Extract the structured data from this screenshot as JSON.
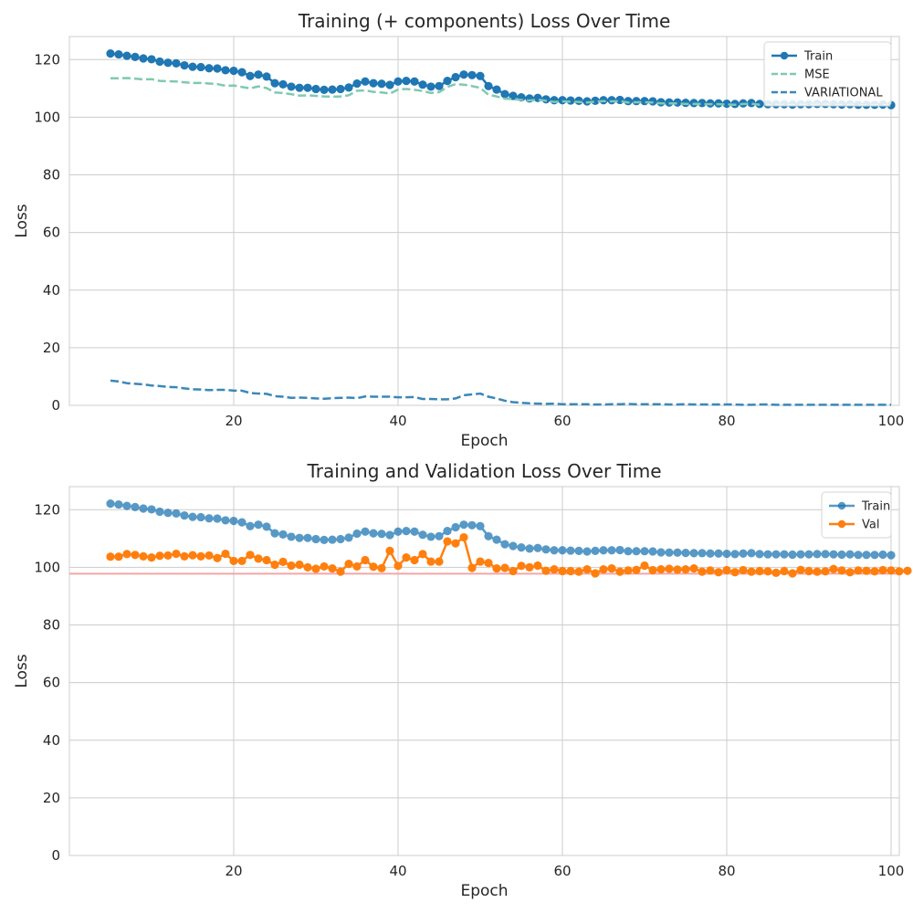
{
  "chart_data": [
    {
      "type": "line",
      "title": "Training (+ components) Loss Over Time",
      "xlabel": "Epoch",
      "ylabel": "Loss",
      "xlim": [
        0,
        101
      ],
      "ylim": [
        0,
        128
      ],
      "xticks": [
        20,
        40,
        60,
        80,
        100
      ],
      "yticks": [
        0,
        20,
        40,
        60,
        80,
        100,
        120
      ],
      "grid": true,
      "legend_position": "top-right",
      "x_start": 5,
      "x_step": 1,
      "series": [
        {
          "name": "Train",
          "style": "line-with-markers",
          "color": "#1f77b4",
          "values": [
            122.1,
            121.8,
            121.3,
            120.9,
            120.4,
            120.1,
            119.3,
            118.9,
            118.7,
            118.0,
            117.5,
            117.4,
            117.0,
            116.9,
            116.3,
            116.1,
            115.6,
            114.3,
            114.8,
            114.1,
            111.8,
            111.4,
            110.6,
            110.2,
            110.2,
            109.8,
            109.5,
            109.6,
            109.8,
            110.3,
            111.7,
            112.4,
            111.8,
            111.6,
            111.2,
            112.4,
            112.6,
            112.4,
            111.3,
            110.6,
            110.8,
            112.6,
            113.9,
            114.8,
            114.6,
            114.3,
            110.8,
            109.6,
            108.0,
            107.4,
            106.9,
            106.5,
            106.7,
            106.2,
            105.9,
            105.9,
            105.8,
            105.7,
            105.5,
            105.7,
            105.9,
            105.9,
            106.0,
            105.6,
            105.6,
            105.6,
            105.5,
            105.2,
            105.1,
            105.1,
            105.0,
            104.9,
            104.9,
            104.8,
            104.8,
            104.7,
            104.6,
            104.8,
            104.9,
            104.6,
            104.5,
            104.5,
            104.5,
            104.4,
            104.5,
            104.5,
            104.6,
            104.6,
            104.5,
            104.4,
            104.5,
            104.3,
            104.3,
            104.3,
            104.4,
            104.2
          ]
        },
        {
          "name": "MSE",
          "style": "dashed",
          "color": "#7fc9b0",
          "values": [
            113.5,
            113.5,
            113.6,
            113.4,
            113.1,
            113.2,
            112.6,
            112.5,
            112.4,
            112.1,
            111.9,
            111.9,
            111.7,
            111.5,
            110.9,
            111.0,
            110.5,
            110.0,
            110.7,
            110.1,
            108.6,
            108.4,
            108.0,
            107.5,
            107.6,
            107.4,
            107.2,
            107.1,
            107.2,
            107.6,
            109.2,
            109.3,
            108.8,
            108.6,
            108.2,
            109.6,
            109.8,
            109.5,
            109.1,
            108.4,
            108.7,
            110.5,
            111.5,
            111.3,
            110.8,
            110.2,
            107.8,
            107.2,
            106.4,
            106.3,
            106.0,
            105.8,
            106.1,
            105.7,
            105.3,
            105.5,
            105.4,
            105.3,
            105.1,
            105.4,
            105.6,
            105.5,
            105.6,
            105.1,
            105.2,
            105.2,
            105.1,
            104.8,
            104.8,
            104.8,
            104.6,
            104.6,
            104.6,
            104.5,
            104.5,
            104.4,
            104.3,
            104.6,
            104.7,
            104.3,
            104.2,
            104.3,
            104.3,
            104.2,
            104.3,
            104.3,
            104.4,
            104.4,
            104.3,
            104.2,
            104.3,
            104.1,
            104.1,
            104.1,
            104.2,
            104.0
          ]
        },
        {
          "name": "VARIATIONAL",
          "style": "dashed",
          "color": "#3a87b8",
          "values": [
            8.6,
            8.3,
            7.7,
            7.5,
            7.3,
            6.9,
            6.7,
            6.4,
            6.3,
            5.9,
            5.6,
            5.5,
            5.3,
            5.4,
            5.4,
            5.1,
            5.1,
            4.3,
            4.1,
            4.0,
            3.2,
            3.0,
            2.6,
            2.7,
            2.6,
            2.4,
            2.3,
            2.5,
            2.6,
            2.7,
            2.5,
            3.1,
            3.0,
            3.0,
            3.0,
            2.8,
            2.8,
            2.9,
            2.2,
            2.2,
            2.1,
            2.1,
            2.4,
            3.5,
            3.8,
            4.1,
            3.0,
            2.4,
            1.6,
            1.1,
            0.9,
            0.7,
            0.6,
            0.5,
            0.6,
            0.4,
            0.4,
            0.4,
            0.4,
            0.3,
            0.3,
            0.4,
            0.4,
            0.5,
            0.4,
            0.4,
            0.4,
            0.4,
            0.3,
            0.3,
            0.4,
            0.3,
            0.3,
            0.3,
            0.3,
            0.3,
            0.3,
            0.2,
            0.2,
            0.3,
            0.3,
            0.2,
            0.2,
            0.2,
            0.2,
            0.2,
            0.2,
            0.2,
            0.2,
            0.2,
            0.2,
            0.2,
            0.2,
            0.2,
            0.2,
            0.2
          ]
        }
      ]
    },
    {
      "type": "line",
      "title": "Training and Validation Loss Over Time",
      "xlabel": "Epoch",
      "ylabel": "Loss",
      "xlim": [
        0,
        101
      ],
      "ylim": [
        0,
        128
      ],
      "xticks": [
        20,
        40,
        60,
        80,
        100
      ],
      "yticks": [
        0,
        20,
        40,
        60,
        80,
        100,
        120
      ],
      "grid": true,
      "legend_position": "top-right",
      "x_start": 5,
      "x_step": 1,
      "reference_line": {
        "y": 97.8,
        "color": "#f4a6a6"
      },
      "series": [
        {
          "name": "Train",
          "style": "line-with-markers",
          "color": "#1f77b4",
          "opacity": 0.75,
          "values": [
            122.1,
            121.8,
            121.3,
            120.9,
            120.4,
            120.1,
            119.3,
            118.9,
            118.7,
            118.0,
            117.5,
            117.4,
            117.0,
            116.9,
            116.3,
            116.1,
            115.6,
            114.3,
            114.8,
            114.1,
            111.8,
            111.4,
            110.6,
            110.2,
            110.2,
            109.8,
            109.5,
            109.6,
            109.8,
            110.3,
            111.7,
            112.4,
            111.8,
            111.6,
            111.2,
            112.4,
            112.6,
            112.4,
            111.3,
            110.6,
            110.8,
            112.6,
            113.9,
            114.8,
            114.6,
            114.3,
            110.8,
            109.6,
            108.0,
            107.4,
            106.9,
            106.5,
            106.7,
            106.2,
            105.9,
            105.9,
            105.8,
            105.7,
            105.5,
            105.7,
            105.9,
            105.9,
            106.0,
            105.6,
            105.6,
            105.6,
            105.5,
            105.2,
            105.1,
            105.1,
            105.0,
            104.9,
            104.9,
            104.8,
            104.8,
            104.7,
            104.6,
            104.8,
            104.9,
            104.6,
            104.5,
            104.5,
            104.5,
            104.4,
            104.5,
            104.5,
            104.6,
            104.6,
            104.5,
            104.4,
            104.5,
            104.3,
            104.3,
            104.3,
            104.4,
            104.2
          ]
        },
        {
          "name": "Val",
          "style": "line-with-markers",
          "color": "#ff7f0e",
          "values": [
            103.7,
            103.7,
            104.6,
            104.3,
            103.8,
            103.4,
            104.0,
            104.1,
            104.7,
            103.8,
            104.2,
            103.8,
            104.1,
            103.2,
            104.7,
            102.2,
            102.2,
            104.3,
            103.0,
            102.5,
            100.9,
            101.9,
            100.6,
            100.9,
            100.0,
            99.5,
            100.3,
            99.6,
            98.5,
            101.2,
            100.3,
            102.5,
            100.2,
            99.7,
            105.7,
            100.5,
            103.4,
            102.5,
            104.6,
            102.0,
            102.0,
            109.0,
            108.3,
            110.4,
            99.8,
            102.0,
            101.5,
            99.6,
            99.8,
            98.7,
            100.5,
            100.0,
            100.6,
            98.8,
            99.3,
            98.7,
            98.7,
            98.5,
            99.3,
            97.9,
            99.3,
            99.6,
            98.5,
            98.9,
            99.1,
            100.6,
            99.0,
            99.3,
            99.5,
            99.2,
            99.3,
            99.6,
            98.5,
            98.9,
            98.3,
            99.0,
            98.3,
            99.0,
            98.5,
            98.7,
            98.6,
            98.1,
            98.7,
            97.9,
            99.1,
            98.7,
            98.5,
            98.6,
            99.4,
            98.9,
            98.3,
            98.9,
            98.8,
            98.6,
            99.0,
            98.9,
            98.6,
            98.8
          ]
        }
      ]
    }
  ]
}
